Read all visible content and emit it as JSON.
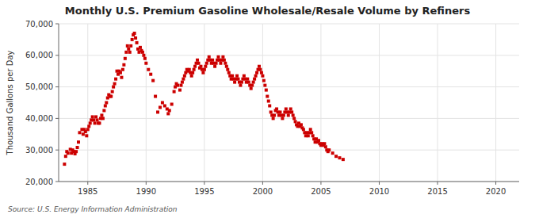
{
  "chart_data": {
    "type": "scatter",
    "title": "Monthly U.S. Premium Gasoline Wholesale/Resale Volume by Refiners",
    "ylabel": "Thousand Gallons per Day",
    "annotations": [
      "Source: U.S. Energy Information Administration"
    ],
    "color": "#cc0000",
    "marker": "square",
    "grid": true,
    "xlim": [
      1982.5,
      2022
    ],
    "ylim": [
      20000,
      70000
    ],
    "xticks": [
      1985,
      1990,
      1995,
      2000,
      2005,
      2010,
      2015,
      2020
    ],
    "yticks": [
      {
        "value": 20000,
        "label": "20,000"
      },
      {
        "value": 30000,
        "label": "30,000"
      },
      {
        "value": 40000,
        "label": "40,000"
      },
      {
        "value": 50000,
        "label": "50,000"
      },
      {
        "value": 60000,
        "label": "60,000"
      },
      {
        "value": 70000,
        "label": "70,000"
      }
    ],
    "x": [
      1983.0,
      1983.1,
      1983.2,
      1983.3,
      1983.5,
      1983.6,
      1983.7,
      1983.8,
      1983.9,
      1984.0,
      1984.1,
      1984.2,
      1984.3,
      1984.5,
      1984.6,
      1984.7,
      1984.8,
      1984.9,
      1985.0,
      1985.1,
      1985.2,
      1985.3,
      1985.4,
      1985.5,
      1985.6,
      1985.7,
      1985.8,
      1985.9,
      1986.0,
      1986.1,
      1986.2,
      1986.3,
      1986.4,
      1986.5,
      1986.6,
      1986.7,
      1986.8,
      1986.9,
      1987.0,
      1987.1,
      1987.2,
      1987.3,
      1987.4,
      1987.5,
      1987.6,
      1987.7,
      1987.8,
      1987.9,
      1988.0,
      1988.1,
      1988.2,
      1988.3,
      1988.4,
      1988.5,
      1988.6,
      1988.7,
      1988.8,
      1988.9,
      1989.0,
      1989.1,
      1989.2,
      1989.3,
      1989.4,
      1989.5,
      1989.6,
      1989.7,
      1989.8,
      1989.9,
      1990.0,
      1990.2,
      1990.4,
      1990.6,
      1990.8,
      1991.0,
      1991.2,
      1991.4,
      1991.6,
      1991.8,
      1991.9,
      1992.0,
      1992.2,
      1992.4,
      1992.5,
      1992.6,
      1992.7,
      1992.9,
      1993.0,
      1993.1,
      1993.2,
      1993.3,
      1993.4,
      1993.5,
      1993.6,
      1993.7,
      1993.8,
      1993.9,
      1994.0,
      1994.1,
      1994.2,
      1994.3,
      1994.4,
      1994.5,
      1994.6,
      1994.7,
      1994.8,
      1994.9,
      1995.0,
      1995.1,
      1995.2,
      1995.3,
      1995.4,
      1995.5,
      1995.6,
      1995.7,
      1995.8,
      1995.9,
      1996.0,
      1996.1,
      1996.2,
      1996.3,
      1996.4,
      1996.5,
      1996.6,
      1996.7,
      1996.8,
      1996.9,
      1997.0,
      1997.1,
      1997.2,
      1997.3,
      1997.4,
      1997.5,
      1997.6,
      1997.7,
      1997.8,
      1997.9,
      1998.0,
      1998.1,
      1998.2,
      1998.3,
      1998.4,
      1998.5,
      1998.6,
      1998.7,
      1998.8,
      1998.9,
      1999.0,
      1999.1,
      1999.2,
      1999.3,
      1999.4,
      1999.5,
      1999.6,
      1999.7,
      1999.8,
      1999.9,
      2000.0,
      2000.1,
      2000.2,
      2000.3,
      2000.4,
      2000.5,
      2000.6,
      2000.7,
      2000.8,
      2000.9,
      2001.0,
      2001.1,
      2001.2,
      2001.3,
      2001.4,
      2001.5,
      2001.6,
      2001.7,
      2001.8,
      2001.9,
      2002.0,
      2002.1,
      2002.2,
      2002.3,
      2002.4,
      2002.5,
      2002.6,
      2002.7,
      2002.8,
      2002.9,
      2003.0,
      2003.1,
      2003.2,
      2003.3,
      2003.4,
      2003.5,
      2003.6,
      2003.7,
      2003.8,
      2003.9,
      2004.0,
      2004.1,
      2004.2,
      2004.3,
      2004.4,
      2004.5,
      2004.6,
      2004.7,
      2004.8,
      2004.9,
      2005.0,
      2005.1,
      2005.2,
      2005.3,
      2005.4,
      2005.5,
      2005.6,
      2005.7,
      2006.0,
      2006.3,
      2006.6,
      2006.9
    ],
    "values": [
      25500,
      28000,
      29500,
      29000,
      30200,
      29000,
      30000,
      29500,
      28800,
      29500,
      30800,
      32500,
      35500,
      36500,
      35000,
      36500,
      35800,
      34500,
      36500,
      37500,
      38500,
      39500,
      40500,
      39500,
      38500,
      40500,
      39500,
      38500,
      38500,
      40000,
      41000,
      40000,
      42500,
      44000,
      45000,
      46500,
      47500,
      47000,
      47000,
      48500,
      50000,
      51000,
      52500,
      55000,
      54000,
      55000,
      54500,
      53000,
      55500,
      57000,
      59000,
      61000,
      63000,
      62000,
      61000,
      63000,
      65000,
      66500,
      67000,
      65500,
      64000,
      62000,
      61000,
      62500,
      61500,
      61000,
      60000,
      59000,
      57500,
      55500,
      54000,
      52000,
      47000,
      42000,
      43500,
      45000,
      44000,
      43000,
      41500,
      42500,
      44500,
      48500,
      50000,
      51000,
      50500,
      49000,
      50500,
      51500,
      52500,
      53500,
      54500,
      55500,
      55000,
      55500,
      54500,
      53500,
      54500,
      55500,
      56500,
      57500,
      58500,
      57500,
      56000,
      56500,
      55500,
      54500,
      55500,
      56500,
      57500,
      58500,
      59500,
      58500,
      57500,
      58500,
      57500,
      56500,
      57500,
      58500,
      59500,
      58500,
      57500,
      58500,
      59500,
      58500,
      57500,
      56500,
      55500,
      54500,
      53500,
      52500,
      53500,
      52500,
      51500,
      52500,
      53500,
      52500,
      51500,
      50500,
      51500,
      52500,
      53500,
      52500,
      51500,
      52500,
      51500,
      50500,
      49500,
      50500,
      51500,
      52500,
      53500,
      54500,
      55500,
      56500,
      55500,
      54500,
      53500,
      52000,
      50500,
      49000,
      47000,
      45500,
      44000,
      42000,
      41000,
      40000,
      41000,
      42500,
      43000,
      42000,
      41000,
      42000,
      41000,
      40000,
      41000,
      42000,
      43000,
      42000,
      41000,
      42000,
      43000,
      42000,
      41000,
      40000,
      39000,
      38000,
      37500,
      38500,
      37500,
      38000,
      37000,
      36500,
      35500,
      34500,
      35500,
      34500,
      35500,
      36500,
      35500,
      34500,
      33500,
      32500,
      33500,
      32500,
      33000,
      32000,
      31500,
      32000,
      31500,
      32000,
      31000,
      30000,
      29500,
      30000,
      29000,
      28000,
      27500,
      27000
    ]
  }
}
